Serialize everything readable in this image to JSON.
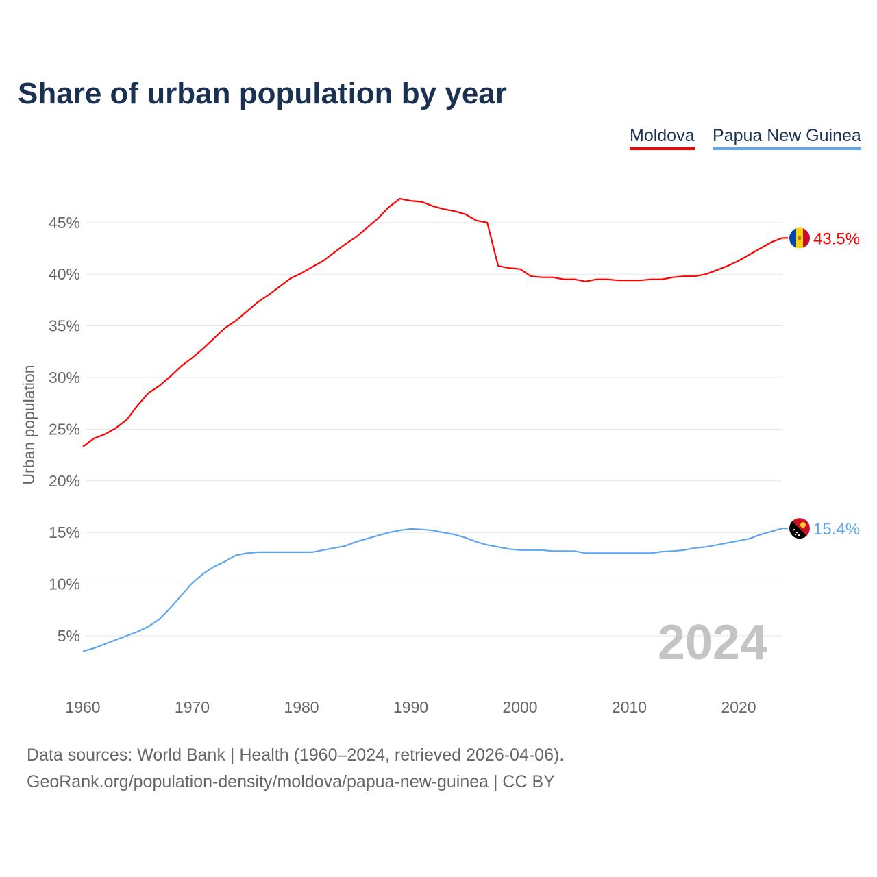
{
  "chart_data": {
    "type": "line",
    "title": "Share of urban population by year",
    "ylabel": "Urban population",
    "xlabel": "",
    "xlim": [
      1960,
      2024
    ],
    "ylim": [
      0,
      50
    ],
    "yticks": [
      5,
      10,
      15,
      20,
      25,
      30,
      35,
      40,
      45
    ],
    "ytick_labels": [
      "5%",
      "10%",
      "15%",
      "20%",
      "25%",
      "30%",
      "35%",
      "40%",
      "45%"
    ],
    "xticks": [
      1960,
      1970,
      1980,
      1990,
      2000,
      2010,
      2020
    ],
    "xtick_labels": [
      "1960",
      "1970",
      "1980",
      "1990",
      "2000",
      "2010",
      "2020"
    ],
    "grid": true,
    "legend_position": "top-right",
    "year_watermark": "2024",
    "series": [
      {
        "name": "Moldova",
        "color": "#ff0000",
        "end_label": "43.5%",
        "flag": "moldova-flag",
        "values": [
          23.3,
          24.1,
          24.5,
          25.1,
          25.9,
          27.3,
          28.5,
          29.2,
          30.1,
          31.1,
          31.9,
          32.8,
          33.8,
          34.8,
          35.5,
          36.4,
          37.3,
          38.0,
          38.8,
          39.6,
          40.1,
          40.7,
          41.3,
          42.1,
          42.9,
          43.6,
          44.5,
          45.4,
          46.5,
          47.3,
          47.1,
          47.0,
          46.6,
          46.3,
          46.1,
          45.8,
          45.2,
          45.0,
          40.8,
          40.6,
          40.5,
          39.8,
          39.7,
          39.7,
          39.5,
          39.5,
          39.3,
          39.5,
          39.5,
          39.4,
          39.4,
          39.4,
          39.5,
          39.5,
          39.7,
          39.8,
          39.8,
          40.0,
          40.4,
          40.8,
          41.3,
          41.9,
          42.5,
          43.1,
          43.5
        ]
      },
      {
        "name": "Papua New Guinea",
        "color": "#5ea6ee",
        "end_label": "15.4%",
        "flag": "papua-new-guinea-flag",
        "values": [
          3.5,
          3.8,
          4.2,
          4.6,
          5.0,
          5.4,
          5.9,
          6.6,
          7.7,
          8.9,
          10.1,
          11.0,
          11.7,
          12.2,
          12.8,
          13.0,
          13.1,
          13.1,
          13.1,
          13.1,
          13.1,
          13.1,
          13.3,
          13.5,
          13.7,
          14.1,
          14.4,
          14.7,
          15.0,
          15.2,
          15.35,
          15.3,
          15.2,
          15.0,
          14.8,
          14.5,
          14.1,
          13.8,
          13.6,
          13.4,
          13.3,
          13.3,
          13.3,
          13.2,
          13.2,
          13.2,
          13.0,
          13.0,
          13.0,
          13.0,
          13.0,
          13.0,
          13.0,
          13.15,
          13.2,
          13.3,
          13.5,
          13.6,
          13.8,
          14.0,
          14.2,
          14.4,
          14.8,
          15.1,
          15.4
        ]
      }
    ]
  },
  "footer": {
    "line1": "Data sources: World Bank | Health (1960–2024, retrieved 2026-04-06).",
    "line2": "GeoRank.org/population-density/moldova/papua-new-guinea | CC BY"
  }
}
